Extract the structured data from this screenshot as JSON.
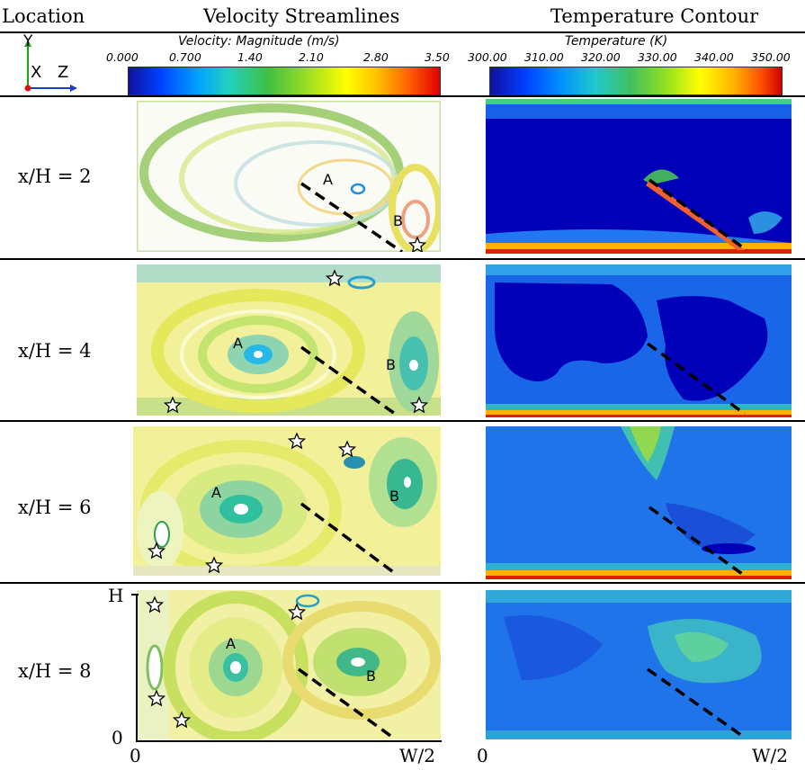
{
  "header": {
    "location": "Location",
    "velocity_title": "Velocity Streamlines",
    "temperature_title": "Temperature Contour"
  },
  "axes_triad": {
    "y": "Y",
    "x": "X",
    "z": "Z"
  },
  "velocity_colorbar": {
    "title": "Velocity: Magnitude (m/s)",
    "ticks": [
      "0.000",
      "0.700",
      "1.40",
      "2.10",
      "2.80",
      "3.50"
    ],
    "range": [
      0,
      3.5
    ]
  },
  "temperature_colorbar": {
    "title": "Temperature (K)",
    "ticks": [
      "300.00",
      "310.00",
      "320.00",
      "330.00",
      "340.00",
      "350.00"
    ],
    "range": [
      300,
      350
    ]
  },
  "rows": [
    {
      "label": "x/H = 2",
      "points": [
        "A",
        "B"
      ]
    },
    {
      "label": "x/H = 4",
      "points": [
        "A",
        "B"
      ]
    },
    {
      "label": "x/H = 6",
      "points": [
        "A",
        "B"
      ]
    },
    {
      "label": "x/H = 8",
      "points": [
        "A",
        "B"
      ]
    }
  ],
  "axis_labels": {
    "h": "H",
    "zero_y": "0",
    "zero_x": "0",
    "w2": "W/2"
  },
  "colors": {
    "low": "#0000a0",
    "mid": "#55d655",
    "high": "#e01010"
  }
}
